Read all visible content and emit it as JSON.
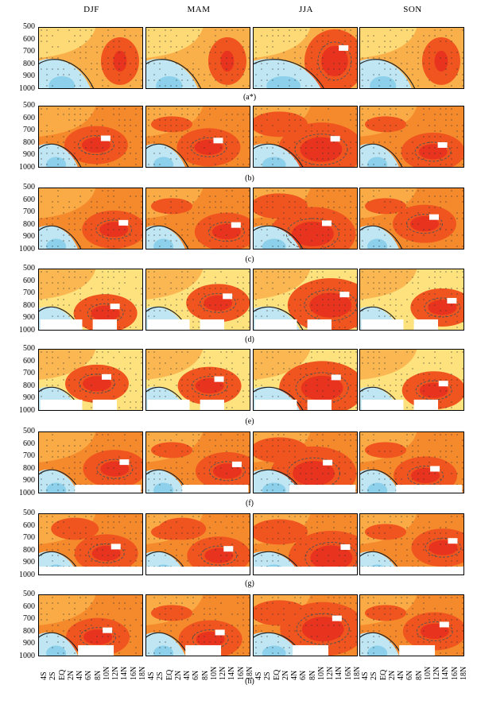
{
  "columns": [
    "DJF",
    "MAM",
    "JJA",
    "SON"
  ],
  "rows": [
    "(a*)",
    "(b)",
    "(c)",
    "(d)",
    "(e)",
    "(f)",
    "(g)",
    "(h)"
  ],
  "colors": {
    "deep_red": "#e8331f",
    "red": "#f0551f",
    "orange": "#f58a2c",
    "light_orange": "#fab04a",
    "yellow": "#fde27e",
    "pale_yellow": "#fff5b4",
    "light_blue": "#bfe6f2",
    "blue": "#7fcbe8",
    "stipple": "#333333",
    "contour": "#222222"
  },
  "chart_data": {
    "type": "heatmap",
    "layout": "8 rows x 4 columns of latitude-pressure panels",
    "x": [
      "4S",
      "2S",
      "EQ",
      "2N",
      "4N",
      "6N",
      "8N",
      "10N",
      "12N",
      "14N",
      "16N",
      "18N"
    ],
    "y": [
      500,
      600,
      700,
      800,
      900,
      1000
    ],
    "ylim": [
      1000,
      500
    ],
    "column_titles": [
      "DJF",
      "MAM",
      "JJA",
      "SON"
    ],
    "row_labels": [
      "(a*)",
      "(b)",
      "(c)",
      "(d)",
      "(e)",
      "(f)",
      "(g)",
      "(h)"
    ],
    "contour_labels": [
      "0.4",
      "0.5",
      "0.6"
    ],
    "note": "shaded filled contours; dots mark significance; dashed contours mark the strongest maxima"
  }
}
